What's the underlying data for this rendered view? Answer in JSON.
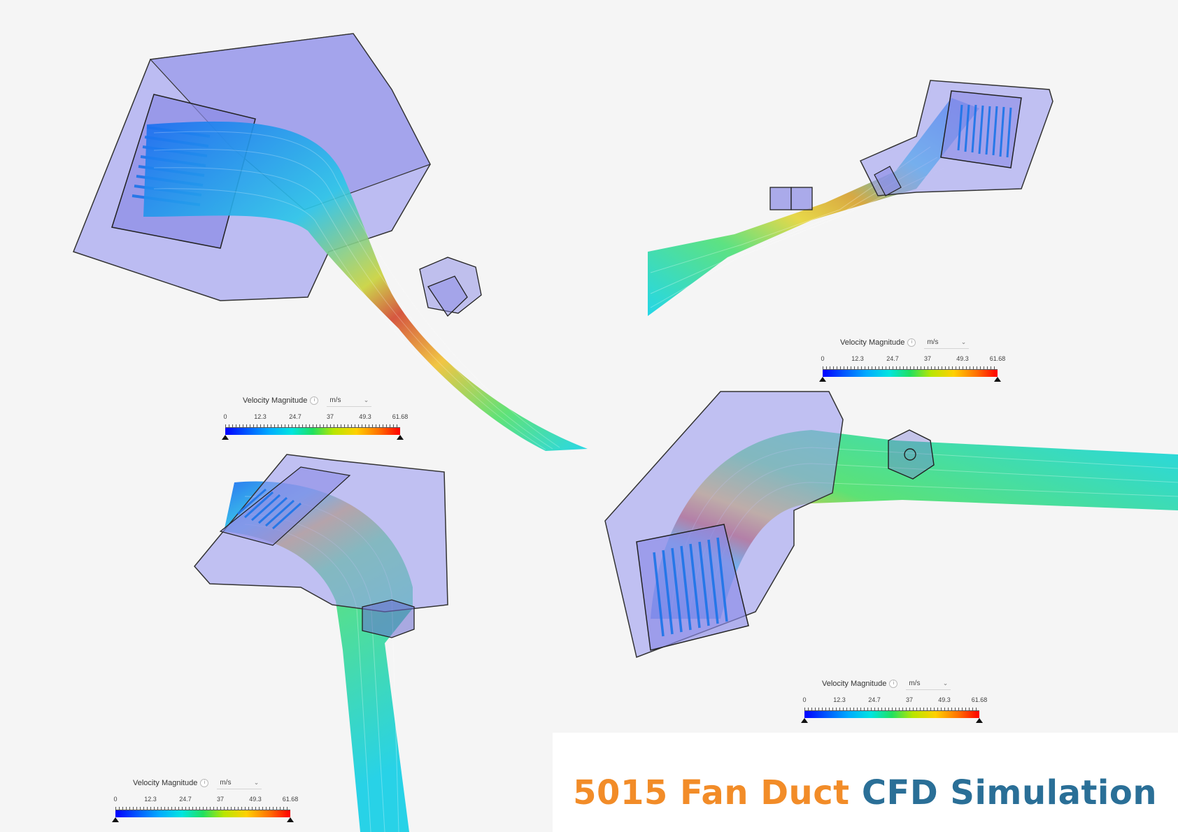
{
  "legend": {
    "title": "Velocity Magnitude",
    "info_icon": "info-icon",
    "unit": "m/s",
    "ticks": [
      "0",
      "12.3",
      "24.7",
      "37",
      "49.3",
      "61.68"
    ],
    "range": [
      0,
      61.68
    ],
    "colormap": [
      "#0000ff",
      "#00aaff",
      "#00e5e0",
      "#20e060",
      "#ffd000",
      "#ff0000"
    ]
  },
  "title": {
    "part1": "5015 Fan Duct",
    "part2": "CFD Simulation",
    "color1": "#f28c28",
    "color2": "#2a6f97"
  }
}
